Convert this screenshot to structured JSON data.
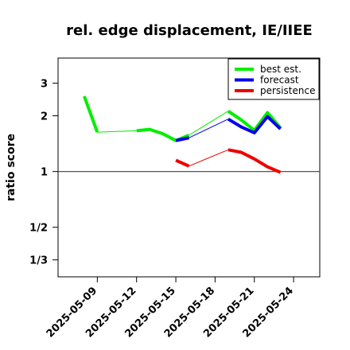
{
  "chart_data": {
    "type": "line",
    "title": "rel. edge displacement, IE/IIEE",
    "xlabel": "",
    "ylabel": "ratio score",
    "x_axis": {
      "type": "date",
      "range": [
        "2025-05-06",
        "2025-05-26"
      ],
      "ticks": [
        "2025-05-09",
        "2025-05-12",
        "2025-05-15",
        "2025-05-18",
        "2025-05-21",
        "2025-05-24"
      ],
      "highlighted_tick": "2025-05-15",
      "highlight_color": "#1a8a1a"
    },
    "y_axis": {
      "scale": "log",
      "range": [
        0.27,
        4.1
      ],
      "ticks": [
        {
          "label": "3",
          "value": 3
        },
        {
          "label": "2",
          "value": 2
        },
        {
          "label": "1",
          "value": 1
        },
        {
          "label": "1/2",
          "value": 0.5
        },
        {
          "label": "1/3",
          "value": 0.3333
        }
      ],
      "reference_line": 1
    },
    "grid": false,
    "legend_position": "top-right",
    "series": [
      {
        "name": "best est.",
        "color": "#00ee00",
        "segments": [
          {
            "style": "thick",
            "points": [
              [
                "2025-05-08",
                2.55
              ],
              [
                "2025-05-09",
                1.63
              ]
            ]
          },
          {
            "style": "thin",
            "points": [
              [
                "2025-05-09",
                1.63
              ],
              [
                "2025-05-12",
                1.66
              ]
            ]
          },
          {
            "style": "thick",
            "points": [
              [
                "2025-05-12",
                1.66
              ],
              [
                "2025-05-13",
                1.69
              ],
              [
                "2025-05-14",
                1.6
              ],
              [
                "2025-05-15",
                1.47
              ],
              [
                "2025-05-16",
                1.57
              ]
            ]
          },
          {
            "style": "thin",
            "points": [
              [
                "2025-05-16",
                1.57
              ],
              [
                "2025-05-19",
                2.12
              ]
            ]
          },
          {
            "style": "thick",
            "points": [
              [
                "2025-05-19",
                2.12
              ],
              [
                "2025-05-20",
                1.9
              ],
              [
                "2025-05-21",
                1.67
              ],
              [
                "2025-05-22",
                2.08
              ],
              [
                "2025-05-23",
                1.72
              ]
            ]
          }
        ]
      },
      {
        "name": "forecast",
        "color": "#0000ee",
        "segments": [
          {
            "style": "thick",
            "points": [
              [
                "2025-05-15",
                1.47
              ],
              [
                "2025-05-16",
                1.52
              ]
            ]
          },
          {
            "style": "thin",
            "points": [
              [
                "2025-05-16",
                1.52
              ],
              [
                "2025-05-19",
                1.92
              ]
            ]
          },
          {
            "style": "thick",
            "points": [
              [
                "2025-05-19",
                1.92
              ],
              [
                "2025-05-20",
                1.74
              ],
              [
                "2025-05-21",
                1.62
              ],
              [
                "2025-05-22",
                1.98
              ],
              [
                "2025-05-23",
                1.7
              ]
            ]
          }
        ]
      },
      {
        "name": "persistence",
        "color": "#ee0000",
        "segments": [
          {
            "style": "thick",
            "points": [
              [
                "2025-05-15",
                1.15
              ],
              [
                "2025-05-16",
                1.07
              ]
            ]
          },
          {
            "style": "thin",
            "points": [
              [
                "2025-05-16",
                1.07
              ],
              [
                "2025-05-19",
                1.31
              ]
            ]
          },
          {
            "style": "thick",
            "points": [
              [
                "2025-05-19",
                1.31
              ],
              [
                "2025-05-20",
                1.27
              ],
              [
                "2025-05-21",
                1.17
              ],
              [
                "2025-05-22",
                1.06
              ],
              [
                "2025-05-23",
                0.99
              ]
            ]
          }
        ]
      }
    ]
  }
}
